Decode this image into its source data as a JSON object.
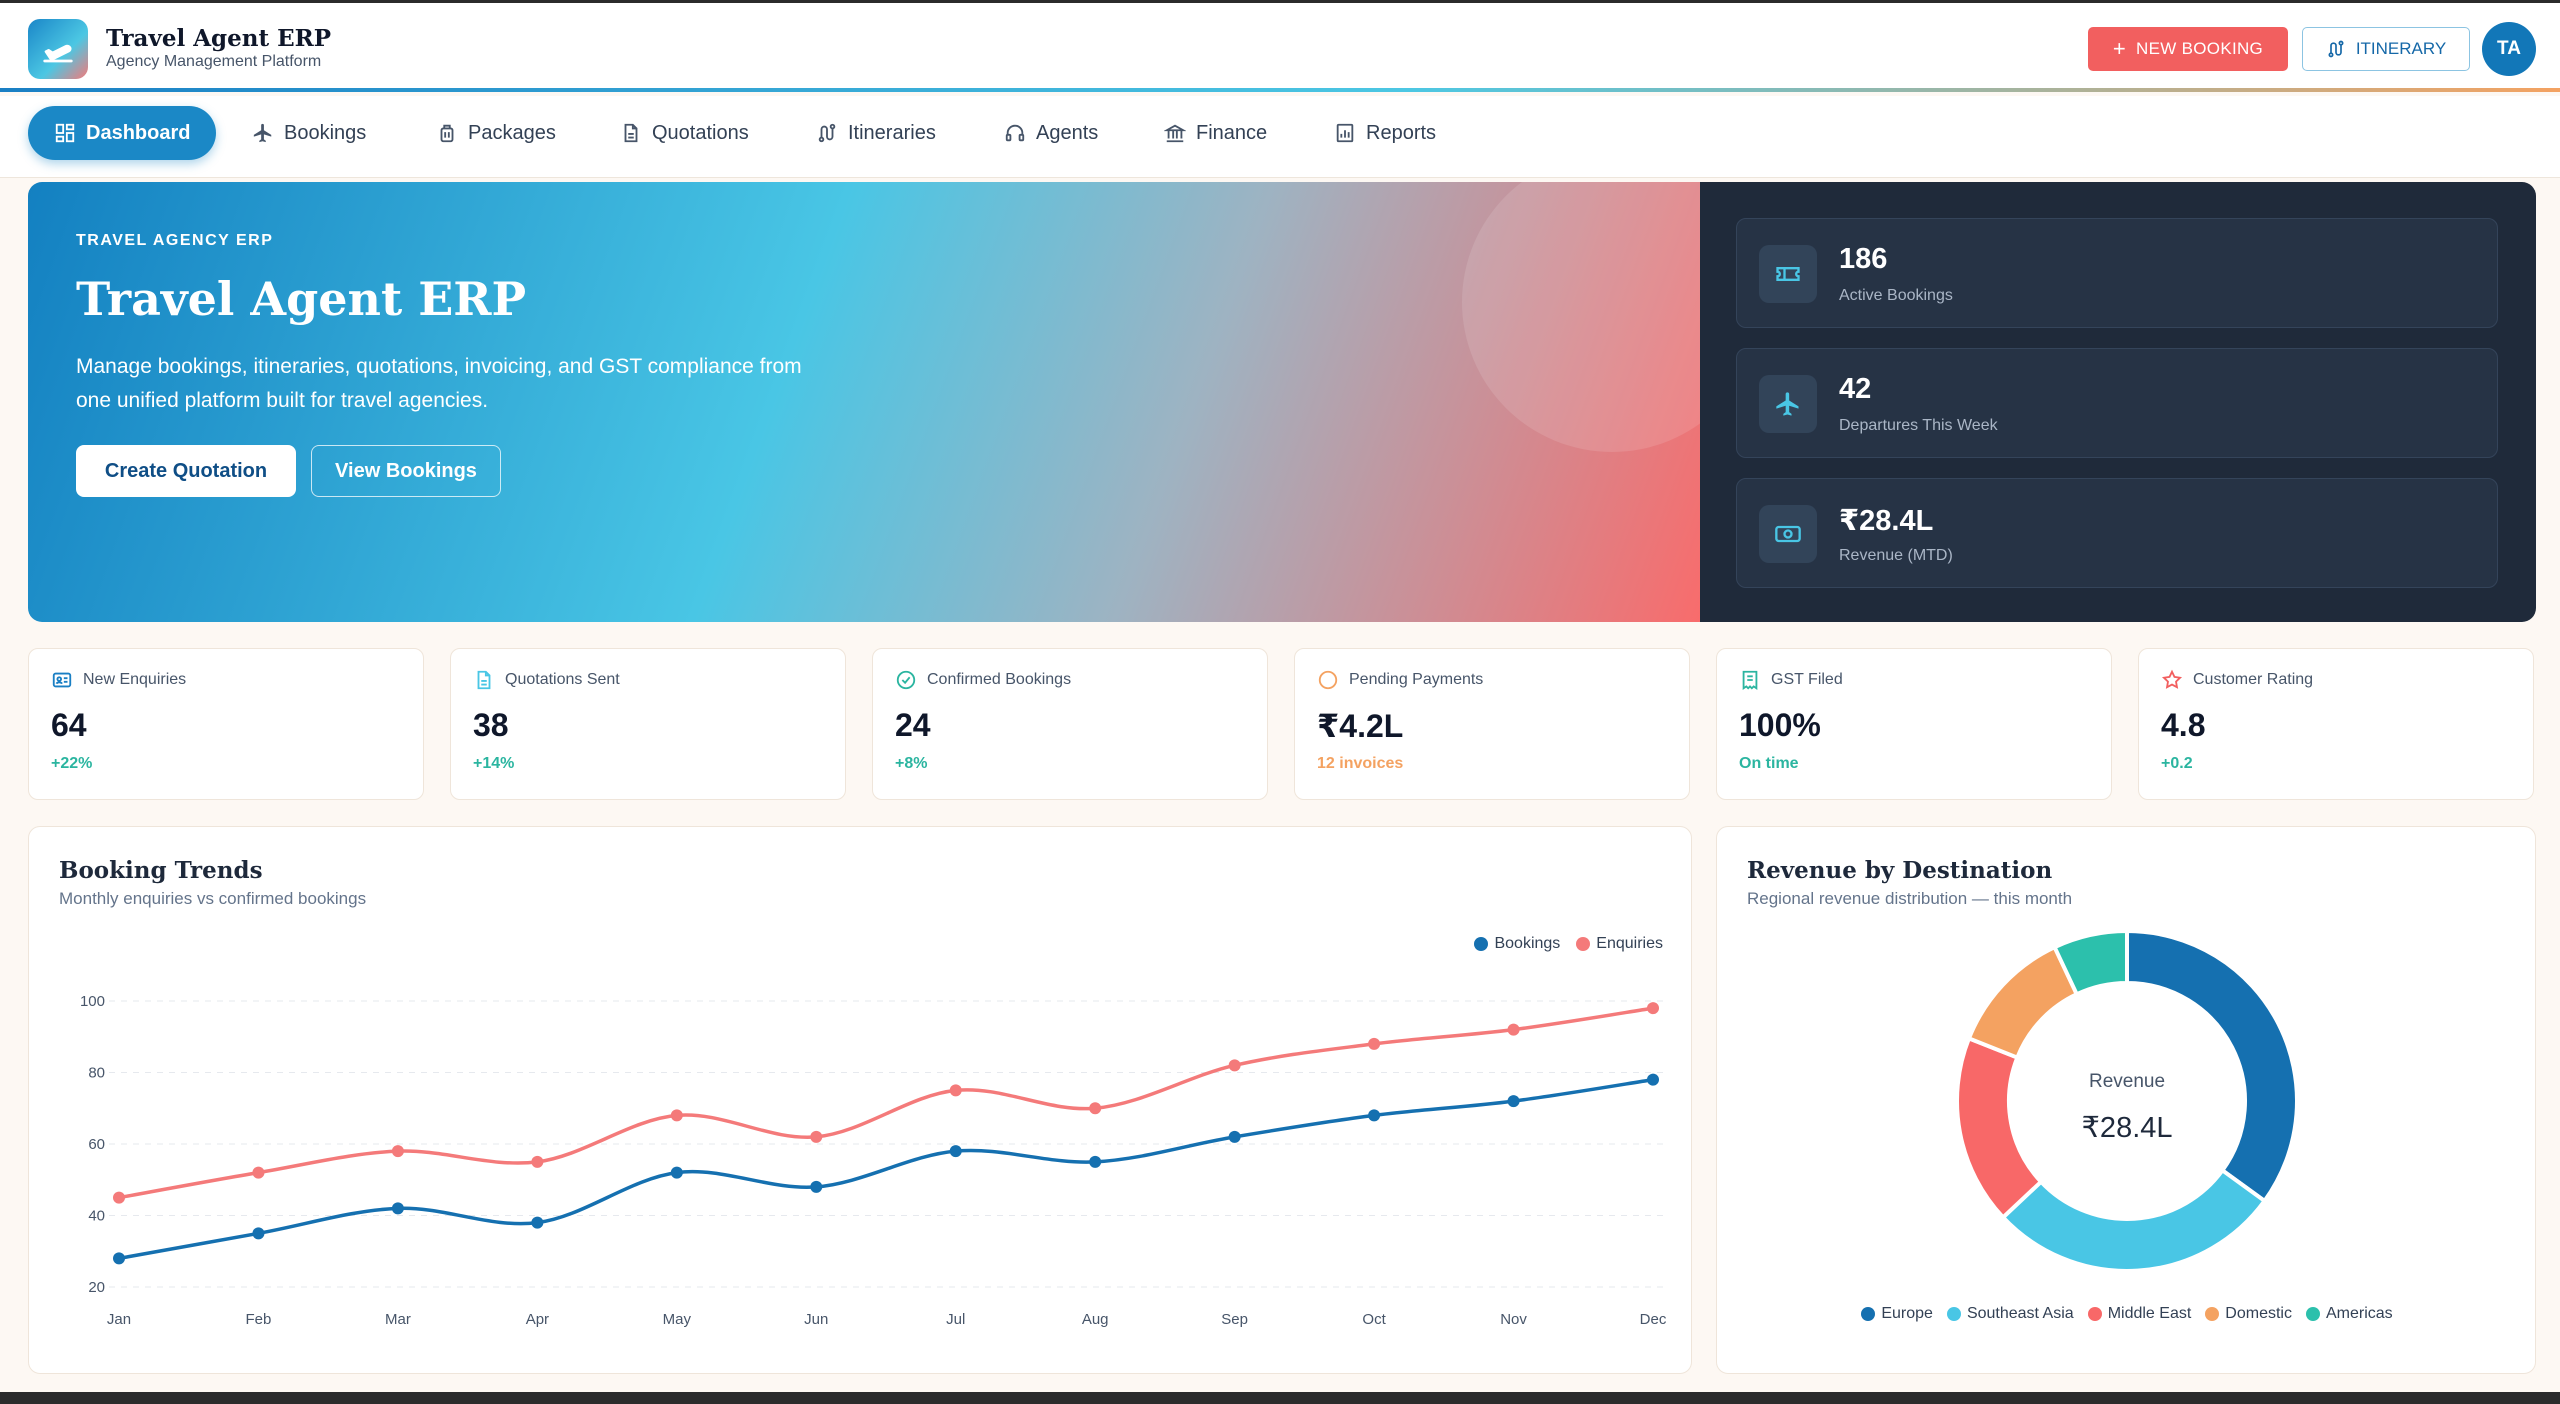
{
  "app": {
    "title": "Travel Agent ERP",
    "subtitle": "Agency Management Platform"
  },
  "header": {
    "new_booking": "NEW BOOKING",
    "itinerary": "ITINERARY",
    "avatar": "TA"
  },
  "nav": [
    {
      "label": "Dashboard",
      "icon": "dashboard-icon",
      "active": true
    },
    {
      "label": "Bookings",
      "icon": "plane-icon"
    },
    {
      "label": "Packages",
      "icon": "luggage-icon"
    },
    {
      "label": "Quotations",
      "icon": "document-icon"
    },
    {
      "label": "Itineraries",
      "icon": "route-icon"
    },
    {
      "label": "Agents",
      "icon": "headset-icon"
    },
    {
      "label": "Finance",
      "icon": "bank-icon"
    },
    {
      "label": "Reports",
      "icon": "report-icon"
    }
  ],
  "hero": {
    "eyebrow": "TRAVEL AGENCY ERP",
    "title": "Travel Agent ERP",
    "description": "Manage bookings, itineraries, quotations, invoicing, and GST compliance from one unified platform built for travel agencies.",
    "primary_button": "Create Quotation",
    "secondary_button": "View Bookings",
    "stats": [
      {
        "value": "186",
        "label": "Active Bookings",
        "icon": "ticket-icon"
      },
      {
        "value": "42",
        "label": "Departures This Week",
        "icon": "plane-icon"
      },
      {
        "value": "₹28.4L",
        "label": "Revenue (MTD)",
        "icon": "cash-icon"
      }
    ]
  },
  "kpis": [
    {
      "label": "New Enquiries",
      "value": "64",
      "delta": "+22%",
      "icon": "contact-card-icon",
      "color": "#1a7fc4",
      "delta_color": "#2bb5a0"
    },
    {
      "label": "Quotations Sent",
      "value": "38",
      "delta": "+14%",
      "icon": "document-icon",
      "color": "#49c6e5",
      "delta_color": "#2bb5a0"
    },
    {
      "label": "Confirmed Bookings",
      "value": "24",
      "delta": "+8%",
      "icon": "check-circle-icon",
      "color": "#2bb5a0",
      "delta_color": "#2bb5a0"
    },
    {
      "label": "Pending Payments",
      "value": "₹4.2L",
      "delta": "12 invoices",
      "icon": "clock-icon",
      "color": "#f4a261",
      "delta_color": "#f4a261"
    },
    {
      "label": "GST Filed",
      "value": "100%",
      "delta": "On time",
      "icon": "receipt-icon",
      "color": "#2bb5a0",
      "delta_color": "#2bb5a0"
    },
    {
      "label": "Customer Rating",
      "value": "4.8",
      "delta": "+0.2",
      "icon": "star-icon",
      "color": "#f25f5f",
      "delta_color": "#2bb5a0"
    }
  ],
  "trends": {
    "title": "Booking Trends",
    "subtitle": "Monthly enquiries vs confirmed bookings"
  },
  "revenue": {
    "title": "Revenue by Destination",
    "subtitle": "Regional revenue distribution — this month",
    "center_label": "Revenue",
    "center_value": "₹28.4L"
  },
  "chart_data": [
    {
      "type": "line",
      "title": "Booking Trends",
      "subtitle": "Monthly enquiries vs confirmed bookings",
      "categories": [
        "Jan",
        "Feb",
        "Mar",
        "Apr",
        "May",
        "Jun",
        "Jul",
        "Aug",
        "Sep",
        "Oct",
        "Nov",
        "Dec"
      ],
      "series": [
        {
          "name": "Bookings",
          "color": "#1570b0",
          "values": [
            28,
            35,
            42,
            38,
            52,
            48,
            58,
            55,
            62,
            68,
            72,
            78
          ]
        },
        {
          "name": "Enquiries",
          "color": "#f47a7a",
          "values": [
            45,
            52,
            58,
            55,
            68,
            62,
            75,
            70,
            82,
            88,
            92,
            98
          ]
        }
      ],
      "yticks": [
        20,
        40,
        60,
        80,
        100
      ],
      "ylim": [
        20,
        100
      ],
      "grid": true,
      "legend": "top-right",
      "smooth": true
    },
    {
      "type": "pie",
      "title": "Revenue by Destination",
      "donut": true,
      "labels": [
        "Europe",
        "Southeast Asia",
        "Middle East",
        "Domestic",
        "Americas"
      ],
      "values": [
        35,
        28,
        18,
        12,
        7
      ],
      "colors": [
        "#1570b0",
        "#49c6e5",
        "#f86868",
        "#f4a261",
        "#2cc0ac"
      ],
      "legend": "bottom"
    }
  ]
}
